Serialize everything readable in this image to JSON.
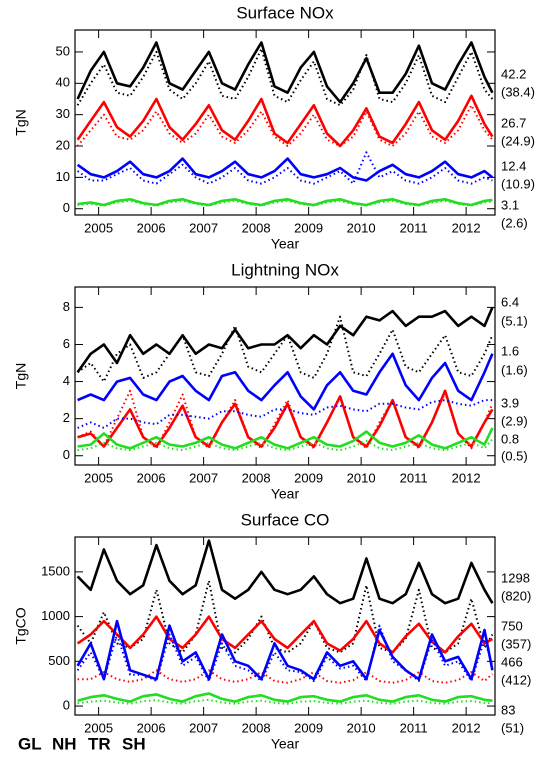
{
  "chart_data": [
    {
      "type": "line",
      "title": "Surface NOx",
      "ylabel": "TgN",
      "xlabel": "Year",
      "x": [
        2004.6,
        2004.85,
        2005.1,
        2005.35,
        2005.6,
        2005.85,
        2006.1,
        2006.35,
        2006.6,
        2006.85,
        2007.1,
        2007.35,
        2007.6,
        2007.85,
        2008.1,
        2008.35,
        2008.6,
        2008.85,
        2009.1,
        2009.35,
        2009.6,
        2009.85,
        2010.1,
        2010.35,
        2010.6,
        2010.85,
        2011.1,
        2011.35,
        2011.6,
        2011.85,
        2012.1,
        2012.35,
        2012.5
      ],
      "xlim": [
        2004.55,
        2012.55
      ],
      "xticks": [
        2005,
        2006,
        2007,
        2008,
        2009,
        2010,
        2011,
        2012
      ],
      "ylim": [
        -2,
        57
      ],
      "yticks": [
        0,
        10,
        20,
        30,
        40,
        50
      ],
      "series": [
        {
          "color": "#000000",
          "dotted": false,
          "label": "42.2",
          "values": [
            35,
            44,
            50,
            40,
            39,
            45,
            53,
            40,
            38,
            44,
            50,
            40,
            38,
            46,
            53,
            39,
            37,
            45,
            50,
            39,
            34,
            40,
            48,
            37,
            37,
            43,
            52,
            40,
            38,
            46,
            53,
            42,
            37
          ]
        },
        {
          "color": "#000000",
          "dotted": true,
          "label": "(38.4)",
          "values": [
            33,
            40,
            46,
            37,
            36,
            42,
            50,
            38,
            35,
            40,
            47,
            36,
            35,
            42,
            51,
            36,
            34,
            41,
            47,
            35,
            33,
            38,
            49,
            35,
            34,
            40,
            49,
            36,
            34,
            42,
            50,
            38,
            35
          ]
        },
        {
          "color": "#ff0000",
          "dotted": false,
          "label": "26.7",
          "values": [
            22,
            28,
            34,
            26,
            23,
            28,
            35,
            26,
            22,
            27,
            33,
            25,
            22,
            28,
            35,
            24,
            21,
            27,
            33,
            24,
            20,
            25,
            32,
            23,
            21,
            27,
            34,
            25,
            22,
            28,
            36,
            27,
            23
          ]
        },
        {
          "color": "#ff0000",
          "dotted": true,
          "label": "(24.9)",
          "values": [
            20,
            25,
            30,
            23,
            22,
            25,
            31,
            24,
            21,
            24,
            30,
            23,
            21,
            25,
            31,
            23,
            20,
            24,
            30,
            22,
            20,
            23,
            31,
            22,
            20,
            24,
            31,
            23,
            21,
            25,
            33,
            25,
            22
          ]
        },
        {
          "color": "#0000ff",
          "dotted": false,
          "label": "12.4",
          "values": [
            14,
            11,
            10,
            12,
            15,
            11,
            10,
            12,
            16,
            11,
            10,
            12,
            15,
            11,
            10,
            12,
            16,
            11,
            10,
            11,
            13,
            10,
            9,
            12,
            14,
            11,
            10,
            12,
            15,
            11,
            10,
            12,
            10
          ]
        },
        {
          "color": "#0000ff",
          "dotted": true,
          "label": "(10.9)",
          "values": [
            12,
            9,
            9,
            11,
            13,
            9,
            8,
            11,
            14,
            10,
            8,
            10,
            13,
            9,
            8,
            10,
            13,
            9,
            8,
            10,
            12,
            8,
            18,
            10,
            12,
            9,
            8,
            10,
            13,
            9,
            8,
            10,
            9
          ]
        },
        {
          "color": "#22dd22",
          "dotted": false,
          "label": "3.1",
          "values": [
            1.5,
            2,
            1.2,
            2.5,
            3,
            1.8,
            1.2,
            2.5,
            3,
            1.8,
            1.2,
            2.5,
            3,
            1.8,
            1.2,
            2.5,
            3,
            1.8,
            1.2,
            2.5,
            3,
            1.8,
            1.2,
            2.5,
            3,
            1.8,
            1.2,
            2.5,
            3,
            1.8,
            1.2,
            2.5,
            2.8
          ]
        },
        {
          "color": "#22dd22",
          "dotted": true,
          "label": "(2.6)",
          "values": [
            1.2,
            1.5,
            1,
            2,
            2.5,
            1.5,
            1,
            2,
            2.5,
            1.5,
            1,
            2,
            2.5,
            1.5,
            1,
            2,
            2.5,
            1.5,
            1,
            2,
            2.5,
            1.5,
            1,
            2,
            2.5,
            1.5,
            1,
            2,
            2.5,
            1.5,
            1,
            2,
            2.3
          ]
        }
      ]
    },
    {
      "type": "line",
      "title": "Lightning NOx",
      "ylabel": "TgN",
      "xlabel": "Year",
      "x": [
        2004.6,
        2004.85,
        2005.1,
        2005.35,
        2005.6,
        2005.85,
        2006.1,
        2006.35,
        2006.6,
        2006.85,
        2007.1,
        2007.35,
        2007.6,
        2007.85,
        2008.1,
        2008.35,
        2008.6,
        2008.85,
        2009.1,
        2009.35,
        2009.6,
        2009.85,
        2010.1,
        2010.35,
        2010.6,
        2010.85,
        2011.1,
        2011.35,
        2011.6,
        2011.85,
        2012.1,
        2012.35,
        2012.5
      ],
      "xlim": [
        2004.55,
        2012.55
      ],
      "xticks": [
        2005,
        2006,
        2007,
        2008,
        2009,
        2010,
        2011,
        2012
      ],
      "ylim": [
        -0.5,
        9.1
      ],
      "yticks": [
        0,
        2,
        4,
        6,
        8
      ],
      "series": [
        {
          "color": "#000000",
          "dotted": false,
          "label": "6.4",
          "values": [
            4.5,
            5.5,
            6,
            5,
            6.5,
            5.5,
            6,
            5.5,
            6.5,
            5.5,
            6,
            5.8,
            6.8,
            5.8,
            6,
            6,
            6.5,
            5.8,
            6.5,
            6,
            7,
            6.5,
            7.5,
            7.3,
            7.8,
            7,
            7.5,
            7.5,
            7.8,
            7,
            7.5,
            7,
            8
          ]
        },
        {
          "color": "#000000",
          "dotted": true,
          "label": "(5.1)",
          "values": [
            4.5,
            5,
            4,
            5.5,
            6,
            4.2,
            4.5,
            5.5,
            6.5,
            4.5,
            4.3,
            5.5,
            7,
            4.8,
            4.5,
            5.5,
            6.5,
            4.5,
            4.2,
            5.5,
            7.5,
            4.5,
            4.3,
            5.5,
            6.8,
            4.8,
            4.5,
            5.5,
            6.5,
            4.5,
            4.3,
            5.5,
            6.5
          ]
        },
        {
          "color": "#ff0000",
          "dotted": false,
          "label": "1.6",
          "values": [
            1,
            1.2,
            0.5,
            1.5,
            2.5,
            1,
            0.5,
            1.5,
            2.7,
            1,
            0.5,
            1.8,
            2.8,
            1,
            0.5,
            1.5,
            2.8,
            1,
            0.5,
            1.8,
            3.2,
            1,
            0.5,
            1.6,
            3,
            1,
            0.5,
            1.8,
            3.5,
            1.2,
            0.5,
            1.8,
            2.5
          ]
        },
        {
          "color": "#ff0000",
          "dotted": true,
          "label": "(1.6)",
          "values": [
            1,
            1.3,
            0.5,
            2,
            3.5,
            1,
            0.4,
            1.8,
            3.3,
            1,
            0.4,
            1.8,
            3,
            1,
            0.4,
            1.7,
            3,
            1,
            0.4,
            1.8,
            3.2,
            1,
            0.4,
            1.8,
            3,
            1,
            0.4,
            1.8,
            3.4,
            1.2,
            0.4,
            1.8,
            2.8
          ]
        },
        {
          "color": "#0000ff",
          "dotted": false,
          "label": "3.9",
          "values": [
            3,
            3.3,
            3,
            4,
            4.2,
            3.3,
            3,
            4,
            4.3,
            3.5,
            3,
            4.3,
            4.5,
            3.5,
            3,
            3.8,
            4.5,
            3.2,
            2.5,
            3.8,
            4.5,
            3.5,
            3.3,
            4.5,
            5.5,
            3.8,
            3,
            4.2,
            5,
            3.5,
            3,
            4.5,
            5.5
          ]
        },
        {
          "color": "#0000ff",
          "dotted": true,
          "label": "(2.9)",
          "values": [
            1.5,
            1.8,
            1.5,
            2,
            2,
            1.8,
            1.7,
            2.2,
            2.2,
            2.1,
            2,
            2.4,
            2.4,
            2.2,
            2.1,
            2.5,
            2.5,
            2.3,
            2.2,
            2.6,
            2.7,
            2.5,
            2.4,
            2.8,
            2.8,
            2.6,
            2.5,
            2.9,
            3,
            2.8,
            2.7,
            3,
            3
          ]
        },
        {
          "color": "#22dd22",
          "dotted": false,
          "label": "0.8",
          "values": [
            0.5,
            0.6,
            1.2,
            0.6,
            0.4,
            0.7,
            1,
            0.6,
            0.5,
            0.7,
            1,
            0.6,
            0.4,
            0.7,
            1,
            0.6,
            0.4,
            0.7,
            1,
            0.6,
            0.5,
            0.8,
            1.3,
            0.7,
            0.5,
            0.7,
            1.1,
            0.6,
            0.4,
            0.7,
            1,
            0.6,
            1.5
          ]
        },
        {
          "color": "#22dd22",
          "dotted": true,
          "label": "(0.5)",
          "values": [
            0.3,
            0.4,
            0.7,
            0.4,
            0.3,
            0.5,
            0.7,
            0.4,
            0.3,
            0.5,
            0.7,
            0.4,
            0.3,
            0.5,
            0.7,
            0.4,
            0.3,
            0.5,
            0.7,
            0.4,
            0.3,
            0.5,
            0.8,
            0.4,
            0.3,
            0.5,
            0.7,
            0.4,
            0.3,
            0.5,
            0.7,
            0.4,
            0.9
          ]
        }
      ]
    },
    {
      "type": "line",
      "title": "Surface CO",
      "ylabel": "TgCO",
      "xlabel": "Year",
      "x": [
        2004.6,
        2004.85,
        2005.1,
        2005.35,
        2005.6,
        2005.85,
        2006.1,
        2006.35,
        2006.6,
        2006.85,
        2007.1,
        2007.35,
        2007.6,
        2007.85,
        2008.1,
        2008.35,
        2008.6,
        2008.85,
        2009.1,
        2009.35,
        2009.6,
        2009.85,
        2010.1,
        2010.35,
        2010.6,
        2010.85,
        2011.1,
        2011.35,
        2011.6,
        2011.85,
        2012.1,
        2012.35,
        2012.5
      ],
      "xlim": [
        2004.55,
        2012.55
      ],
      "xticks": [
        2005,
        2006,
        2007,
        2008,
        2009,
        2010,
        2011,
        2012
      ],
      "ylim": [
        -100,
        1890
      ],
      "yticks": [
        0,
        500,
        1000,
        1500
      ],
      "series": [
        {
          "color": "#000000",
          "dotted": false,
          "label": "1298",
          "values": [
            1450,
            1300,
            1750,
            1400,
            1250,
            1350,
            1800,
            1400,
            1250,
            1350,
            1850,
            1300,
            1200,
            1300,
            1500,
            1300,
            1250,
            1300,
            1450,
            1250,
            1150,
            1200,
            1650,
            1200,
            1150,
            1250,
            1600,
            1250,
            1150,
            1200,
            1600,
            1300,
            1150
          ]
        },
        {
          "color": "#000000",
          "dotted": true,
          "label": "(820)",
          "values": [
            900,
            700,
            1050,
            700,
            650,
            750,
            1300,
            700,
            600,
            800,
            1400,
            650,
            600,
            750,
            1000,
            650,
            600,
            700,
            950,
            650,
            600,
            700,
            1350,
            650,
            600,
            750,
            1300,
            650,
            600,
            700,
            1200,
            650,
            800
          ]
        },
        {
          "color": "#ff0000",
          "dotted": false,
          "label": "750",
          "values": [
            700,
            800,
            950,
            800,
            650,
            800,
            1000,
            750,
            650,
            800,
            1000,
            750,
            650,
            800,
            950,
            750,
            650,
            800,
            950,
            700,
            620,
            750,
            950,
            700,
            600,
            780,
            920,
            720,
            600,
            780,
            920,
            700,
            750
          ]
        },
        {
          "color": "#ff0000",
          "dotted": true,
          "label": "(357)",
          "values": [
            300,
            300,
            380,
            300,
            270,
            300,
            400,
            300,
            270,
            300,
            400,
            300,
            270,
            300,
            380,
            280,
            260,
            300,
            380,
            280,
            260,
            290,
            380,
            280,
            260,
            290,
            380,
            280,
            260,
            290,
            380,
            280,
            360
          ]
        },
        {
          "color": "#0000ff",
          "dotted": false,
          "label": "466",
          "values": [
            450,
            700,
            300,
            950,
            400,
            350,
            300,
            900,
            500,
            600,
            300,
            800,
            500,
            450,
            300,
            700,
            450,
            400,
            300,
            600,
            450,
            500,
            300,
            850,
            550,
            400,
            300,
            800,
            500,
            550,
            300,
            850,
            400
          ]
        },
        {
          "color": "#0000ff",
          "dotted": true,
          "label": "(412)",
          "values": [
            400,
            600,
            300,
            800,
            350,
            350,
            280,
            800,
            450,
            550,
            280,
            700,
            450,
            400,
            280,
            600,
            400,
            380,
            280,
            550,
            420,
            450,
            280,
            900,
            500,
            400,
            280,
            750,
            450,
            500,
            280,
            750,
            450
          ]
        },
        {
          "color": "#22dd22",
          "dotted": false,
          "label": "83",
          "values": [
            60,
            100,
            120,
            80,
            50,
            110,
            130,
            80,
            50,
            110,
            140,
            80,
            50,
            100,
            120,
            70,
            50,
            100,
            110,
            70,
            50,
            100,
            120,
            70,
            50,
            100,
            120,
            70,
            50,
            100,
            110,
            70,
            60
          ]
        },
        {
          "color": "#22dd22",
          "dotted": true,
          "label": "(51)",
          "values": [
            30,
            50,
            60,
            40,
            25,
            55,
            65,
            40,
            25,
            55,
            70,
            40,
            25,
            50,
            60,
            35,
            25,
            50,
            55,
            35,
            25,
            50,
            60,
            35,
            25,
            50,
            60,
            35,
            25,
            50,
            55,
            35,
            30
          ]
        }
      ]
    }
  ],
  "legend": [
    {
      "name": "GL",
      "color": "#000000"
    },
    {
      "name": "NH",
      "color": "#ff0000"
    },
    {
      "name": "TR",
      "color": "#0000ff"
    },
    {
      "name": "SH",
      "color": "#22dd22"
    }
  ]
}
